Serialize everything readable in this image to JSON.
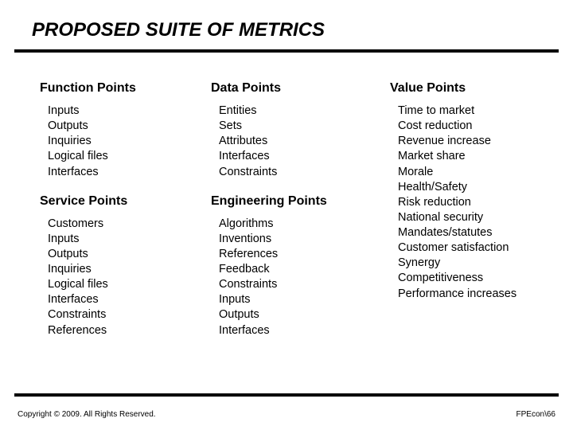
{
  "title": "PROPOSED SUITE OF METRICS",
  "columns": {
    "left": {
      "sec1": {
        "head": "Function Points",
        "items": [
          "Inputs",
          "Outputs",
          "Inquiries",
          "Logical files",
          "Interfaces"
        ]
      },
      "sec2": {
        "head": "Service Points",
        "items": [
          "Customers",
          "Inputs",
          "Outputs",
          "Inquiries",
          "Logical files",
          "Interfaces",
          "Constraints",
          "References"
        ]
      }
    },
    "mid": {
      "sec1": {
        "head": "Data Points",
        "items": [
          "Entities",
          "Sets",
          "Attributes",
          "Interfaces",
          "Constraints"
        ]
      },
      "sec2": {
        "head": "Engineering Points",
        "items": [
          "Algorithms",
          "Inventions",
          "References",
          "Feedback",
          "Constraints",
          "Inputs",
          "Outputs",
          "Interfaces"
        ]
      }
    },
    "right": {
      "sec1": {
        "head": "Value Points",
        "items": [
          "Time to market",
          "Cost reduction",
          "Revenue increase",
          "Market share",
          "Morale",
          "Health/Safety",
          "Risk reduction",
          "National security",
          "Mandates/statutes",
          "Customer satisfaction",
          "Synergy",
          "Competitiveness",
          "Performance increases"
        ]
      }
    }
  },
  "footer": {
    "left": "Copyright © 2009.  All Rights Reserved.",
    "right": "FPEcon\\66"
  }
}
